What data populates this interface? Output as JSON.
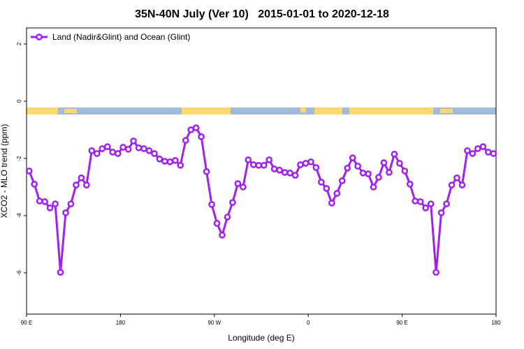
{
  "chart_data": {
    "type": "line",
    "title": "35N-40N July (Ver 10)   2015-01-01 to 2020-12-18",
    "x_label": "Longitude (deg E)",
    "y_label": "XCO2 - MLO trend (ppm)",
    "xlim": [
      90,
      540
    ],
    "ylim": [
      -7.44,
      2.56
    ],
    "xticks": [
      {
        "value": 90,
        "label": "90 E"
      },
      180,
      {
        "value": 270,
        "label": "90 W"
      },
      {
        "value": 360,
        "label": "0"
      },
      {
        "value": 450,
        "label": "90 E"
      },
      {
        "value": 540,
        "label": "180"
      }
    ],
    "yticks": [
      2,
      0,
      -2,
      -4,
      -6
    ],
    "legend": "top-left",
    "x": [
      92.5,
      97.5,
      102.5,
      107.5,
      112.5,
      117.5,
      122.5,
      127.5,
      132.5,
      137.5,
      142.5,
      147.5,
      152.5,
      157.5,
      162.5,
      167.5,
      172.5,
      177.5,
      182.5,
      187.5,
      192.5,
      197.5,
      202.5,
      207.5,
      212.5,
      217.5,
      222.5,
      227.5,
      232.5,
      237.5,
      242.5,
      247.5,
      252.5,
      257.5,
      262.5,
      267.5,
      272.5,
      277.5,
      282.5,
      287.5,
      292.5,
      297.5,
      302.5,
      307.5,
      312.5,
      317.5,
      322.5,
      327.5,
      332.5,
      337.5,
      342.5,
      347.5,
      352.5,
      357.5,
      362.5,
      367.5,
      372.5,
      377.5,
      382.5,
      387.5,
      392.5,
      397.5,
      402.5,
      407.5,
      412.5,
      417.5,
      422.5,
      427.5,
      432.5,
      437.5,
      442.5,
      447.5,
      452.5,
      457.5,
      462.5,
      467.5,
      472.5,
      477.5,
      482.5,
      487.5,
      492.5,
      497.5,
      502.5,
      507.5,
      512.5,
      517.5,
      522.5,
      527.5,
      532.5,
      537.5
    ],
    "series": [
      {
        "name": "Land (Nadir&Glint) and Ocean (Glint)",
        "color": "#a020f0",
        "values": [
          -2.44,
          -2.9,
          -3.49,
          -3.51,
          -3.73,
          -3.59,
          -5.98,
          -3.9,
          -3.59,
          -2.93,
          -2.68,
          -2.93,
          -1.73,
          -1.83,
          -1.66,
          -1.59,
          -1.78,
          -1.83,
          -1.61,
          -1.68,
          -1.39,
          -1.63,
          -1.66,
          -1.73,
          -1.83,
          -2.02,
          -2.1,
          -2.12,
          -2.07,
          -2.24,
          -1.37,
          -1.0,
          -0.93,
          -1.24,
          -2.46,
          -3.61,
          -4.27,
          -4.68,
          -4.05,
          -3.54,
          -2.88,
          -3.0,
          -2.05,
          -2.22,
          -2.24,
          -2.24,
          -2.05,
          -2.37,
          -2.41,
          -2.49,
          -2.51,
          -2.59,
          -2.22,
          -2.17,
          -2.12,
          -2.32,
          -2.83,
          -3.05,
          -3.56,
          -3.22,
          -2.78,
          -2.34,
          -1.98,
          -2.27,
          -2.51,
          -2.54,
          -3.0,
          -2.66,
          -2.15,
          -2.49,
          -1.85,
          -2.17,
          -2.44,
          -2.9,
          -3.49,
          -3.51,
          -3.73,
          -3.59,
          -5.98,
          -3.9,
          -3.59,
          -2.93,
          -2.68,
          -2.93,
          -1.73,
          -1.83,
          -1.66,
          -1.59,
          -1.78,
          -1.83
        ]
      }
    ]
  }
}
